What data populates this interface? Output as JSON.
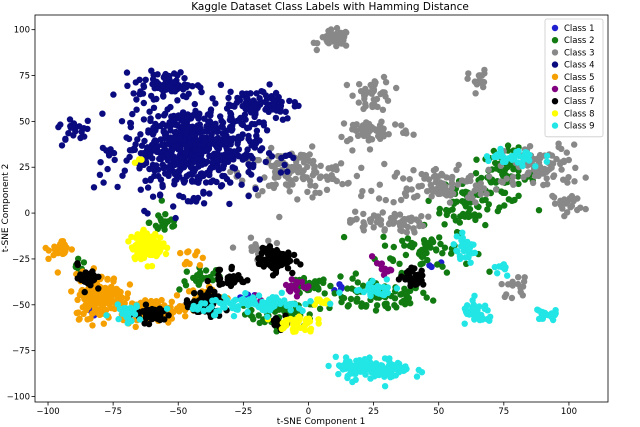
{
  "chart_data": {
    "type": "scatter",
    "title": "Kaggle Dataset Class Labels with Hamming Distance",
    "xlabel": "t-SNE Component 1",
    "ylabel": "t-SNE Component 2",
    "xlim": [
      -105,
      115
    ],
    "ylim": [
      -103,
      108
    ],
    "x_ticks": [
      -100,
      -75,
      -50,
      -25,
      0,
      25,
      50,
      75,
      100
    ],
    "y_ticks": [
      100,
      75,
      50,
      25,
      0,
      -25,
      -50,
      -75,
      -100
    ],
    "grid": false,
    "legend_position": "top-right",
    "series": [
      {
        "name": "Class 1",
        "color": "#1f1fd0",
        "clusters": [
          [
            -83,
            -55,
            3,
            3,
            5
          ],
          [
            -20,
            -45,
            5,
            3,
            5
          ],
          [
            10,
            -40,
            5,
            3,
            4
          ],
          [
            48,
            -30,
            4,
            4,
            4
          ]
        ]
      },
      {
        "name": "Class 2",
        "color": "#117a11",
        "clusters": [
          [
            -10,
            -55,
            12,
            6,
            50
          ],
          [
            25,
            -45,
            18,
            8,
            80
          ],
          [
            45,
            -20,
            15,
            10,
            60
          ],
          [
            60,
            5,
            8,
            12,
            60
          ],
          [
            75,
            20,
            10,
            12,
            60
          ],
          [
            -40,
            -35,
            8,
            6,
            25
          ],
          [
            -55,
            -5,
            5,
            6,
            20
          ],
          [
            -88,
            -30,
            3,
            4,
            10
          ],
          [
            0,
            -40,
            6,
            4,
            25
          ]
        ]
      },
      {
        "name": "Class 3",
        "color": "#888888",
        "clusters": [
          [
            10,
            95,
            5,
            4,
            40
          ],
          [
            25,
            65,
            6,
            8,
            40
          ],
          [
            -5,
            22,
            18,
            10,
            120
          ],
          [
            25,
            45,
            12,
            6,
            60
          ],
          [
            50,
            15,
            20,
            8,
            100
          ],
          [
            30,
            -5,
            12,
            5,
            60
          ],
          [
            65,
            72,
            3,
            5,
            20
          ],
          [
            90,
            25,
            12,
            10,
            80
          ],
          [
            100,
            5,
            5,
            5,
            20
          ],
          [
            80,
            -40,
            5,
            5,
            15
          ],
          [
            -20,
            -20,
            5,
            5,
            20
          ]
        ]
      },
      {
        "name": "Class 4",
        "color": "#0b0b80",
        "clusters": [
          [
            -45,
            35,
            22,
            20,
            600
          ],
          [
            -55,
            70,
            10,
            6,
            70
          ],
          [
            -18,
            60,
            12,
            8,
            80
          ],
          [
            -90,
            45,
            5,
            6,
            20
          ]
        ]
      },
      {
        "name": "Class 5",
        "color": "#f5a000",
        "clusters": [
          [
            -80,
            -45,
            8,
            10,
            180
          ],
          [
            -60,
            -53,
            10,
            5,
            100
          ],
          [
            -95,
            -20,
            4,
            5,
            20
          ],
          [
            -40,
            -45,
            6,
            4,
            25
          ],
          [
            -45,
            -25,
            4,
            4,
            10
          ]
        ]
      },
      {
        "name": "Class 6",
        "color": "#800080",
        "clusters": [
          [
            -5,
            -40,
            4,
            4,
            15
          ],
          [
            28,
            -30,
            3,
            3,
            12
          ],
          [
            -20,
            -48,
            3,
            3,
            8
          ]
        ]
      },
      {
        "name": "Class 7",
        "color": "#000000",
        "clusters": [
          [
            -13,
            -25,
            5,
            5,
            100
          ],
          [
            -60,
            -55,
            6,
            4,
            50
          ],
          [
            -40,
            -50,
            6,
            6,
            60
          ],
          [
            -85,
            -35,
            3,
            6,
            25
          ],
          [
            -30,
            -35,
            5,
            6,
            30
          ],
          [
            40,
            -35,
            4,
            4,
            30
          ],
          [
            -10,
            -60,
            3,
            3,
            15
          ]
        ]
      },
      {
        "name": "Class 8",
        "color": "#ffff00",
        "clusters": [
          [
            -62,
            -18,
            5,
            6,
            130
          ],
          [
            -65,
            30,
            2,
            2,
            3
          ],
          [
            -5,
            -60,
            6,
            4,
            40
          ],
          [
            5,
            -48,
            3,
            3,
            10
          ]
        ]
      },
      {
        "name": "Class 9",
        "color": "#22e6e6",
        "clusters": [
          [
            25,
            -85,
            12,
            5,
            120
          ],
          [
            -20,
            -50,
            20,
            4,
            90
          ],
          [
            65,
            -55,
            5,
            5,
            40
          ],
          [
            60,
            -20,
            4,
            6,
            30
          ],
          [
            78,
            30,
            10,
            5,
            40
          ],
          [
            92,
            -55,
            4,
            3,
            20
          ],
          [
            -70,
            -55,
            5,
            4,
            25
          ],
          [
            25,
            -40,
            8,
            5,
            30
          ],
          [
            75,
            -30,
            3,
            3,
            10
          ]
        ]
      }
    ]
  }
}
